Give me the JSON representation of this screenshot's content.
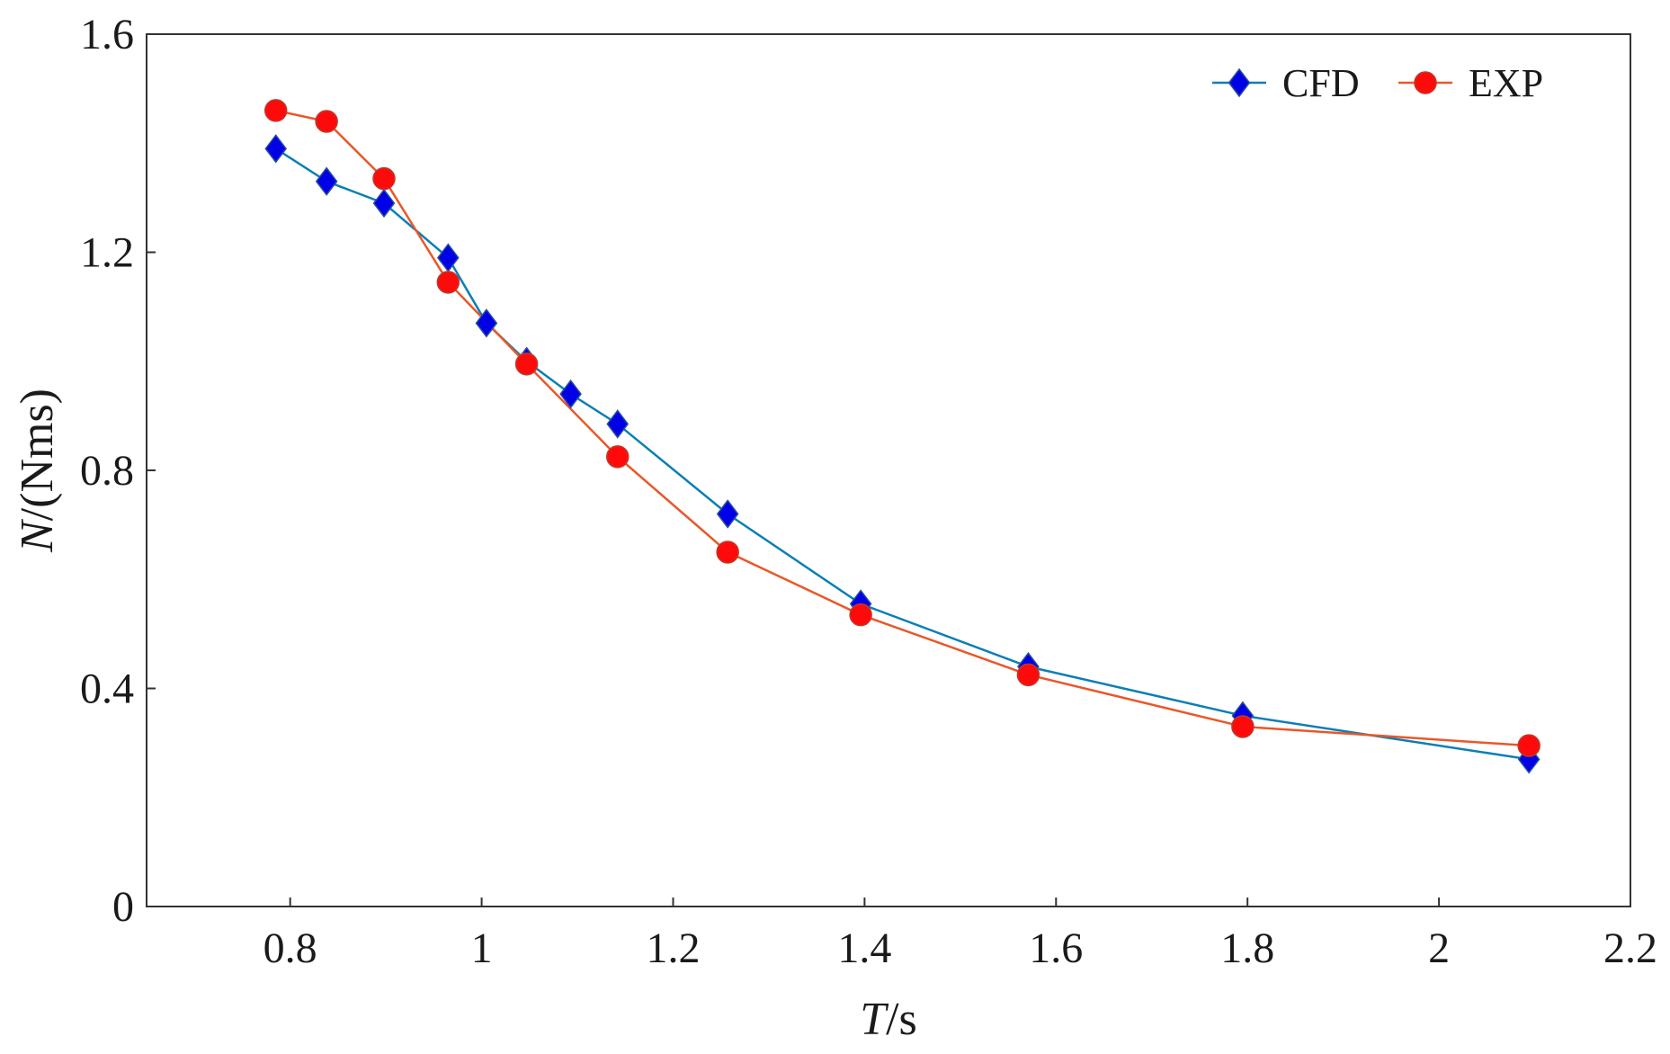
{
  "chart_data": {
    "type": "line",
    "title": "",
    "xlabel": {
      "italic": "T",
      "rest": "/s"
    },
    "ylabel": {
      "italic": "N",
      "rest": "/(Nms)"
    },
    "xlim": [
      0.65,
      2.2
    ],
    "ylim": [
      0,
      1.6
    ],
    "xticks": [
      0.8,
      1,
      1.2,
      1.4,
      1.6,
      1.8,
      2,
      2.2
    ],
    "xtick_labels": [
      "0.8",
      "1",
      "1.2",
      "1.4",
      "1.6",
      "1.8",
      "2",
      "2.2"
    ],
    "yticks": [
      0,
      0.4,
      0.8,
      1.2,
      1.6
    ],
    "ytick_labels": [
      "0",
      "0.4",
      "0.8",
      "1.2",
      "1.6"
    ],
    "grid": false,
    "legend_position": "top-right",
    "series": [
      {
        "name": "CFD",
        "color": "#0a7fb5",
        "marker_color": "#0000e6",
        "marker": "diamond",
        "x": [
          0.785,
          0.838,
          0.898,
          0.965,
          1.005,
          1.047,
          1.093,
          1.142,
          1.257,
          1.396,
          1.571,
          1.795,
          2.094
        ],
        "y": [
          1.39,
          1.33,
          1.29,
          1.19,
          1.07,
          1.0,
          0.94,
          0.885,
          0.72,
          0.555,
          0.44,
          0.35,
          0.27
        ]
      },
      {
        "name": "EXP",
        "color": "#e8582a",
        "marker_color": "#ff0a0a",
        "marker": "circle",
        "x": [
          0.785,
          0.838,
          0.898,
          0.965,
          1.047,
          1.142,
          1.257,
          1.396,
          1.571,
          1.795,
          2.094
        ],
        "y": [
          1.46,
          1.44,
          1.335,
          1.145,
          0.995,
          0.825,
          0.65,
          0.535,
          0.425,
          0.33,
          0.295
        ]
      }
    ]
  }
}
